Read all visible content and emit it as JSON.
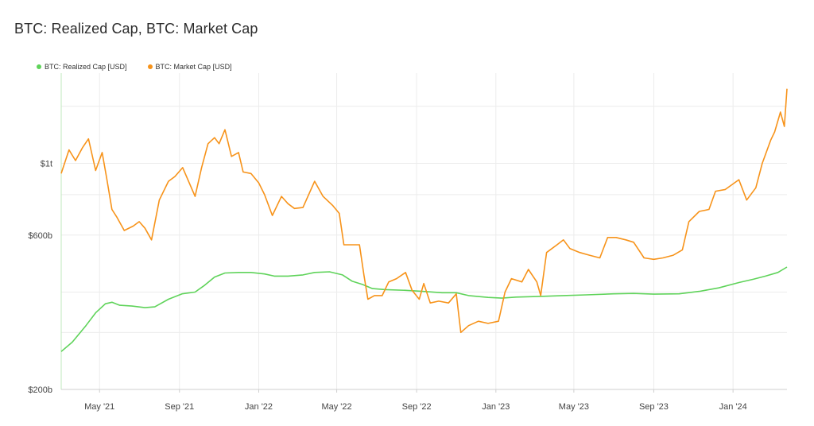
{
  "title": "BTC: Realized Cap, BTC: Market Cap",
  "colors": {
    "realized": "#5fd35a",
    "market": "#f7931a",
    "grid": "#ececec",
    "axis": "#cfcfcf"
  },
  "chart_data": {
    "type": "line",
    "title": "BTC: Realized Cap, BTC: Market Cap",
    "xlabel": "",
    "ylabel": "",
    "x_range": [
      "2021-03-03",
      "2024-03-24"
    ],
    "y_scale": "log",
    "ylim": [
      200,
      1900
    ],
    "y_unit": "billion USD",
    "yticks": [
      {
        "value": 1000,
        "label": "$1t"
      },
      {
        "value": 600,
        "label": "$600b"
      },
      {
        "value": 200,
        "label": "$200b"
      }
    ],
    "xticks": [
      {
        "date": "2021-05-01",
        "label": "May '21"
      },
      {
        "date": "2021-09-01",
        "label": "Sep '21"
      },
      {
        "date": "2022-01-01",
        "label": "Jan '22"
      },
      {
        "date": "2022-05-01",
        "label": "May '22"
      },
      {
        "date": "2022-09-01",
        "label": "Sep '22"
      },
      {
        "date": "2023-01-01",
        "label": "Jan '23"
      },
      {
        "date": "2023-05-01",
        "label": "May '23"
      },
      {
        "date": "2023-09-01",
        "label": "Sep '23"
      },
      {
        "date": "2024-01-01",
        "label": "Jan '24"
      }
    ],
    "grid": true,
    "legend_position": "top-left",
    "series": [
      {
        "name": "BTC: Realized Cap [USD]",
        "color": "#5fd35a",
        "points": [
          [
            "2021-03-03",
            262
          ],
          [
            "2021-03-20",
            280
          ],
          [
            "2021-04-10",
            315
          ],
          [
            "2021-04-25",
            345
          ],
          [
            "2021-05-10",
            368
          ],
          [
            "2021-05-20",
            372
          ],
          [
            "2021-06-01",
            364
          ],
          [
            "2021-06-20",
            362
          ],
          [
            "2021-07-10",
            358
          ],
          [
            "2021-07-25",
            360
          ],
          [
            "2021-08-15",
            380
          ],
          [
            "2021-09-05",
            395
          ],
          [
            "2021-09-25",
            400
          ],
          [
            "2021-10-10",
            420
          ],
          [
            "2021-10-25",
            445
          ],
          [
            "2021-11-10",
            458
          ],
          [
            "2021-12-01",
            460
          ],
          [
            "2021-12-20",
            460
          ],
          [
            "2022-01-10",
            455
          ],
          [
            "2022-01-25",
            448
          ],
          [
            "2022-02-15",
            448
          ],
          [
            "2022-03-10",
            452
          ],
          [
            "2022-03-28",
            460
          ],
          [
            "2022-04-20",
            462
          ],
          [
            "2022-05-10",
            452
          ],
          [
            "2022-05-25",
            432
          ],
          [
            "2022-06-10",
            422
          ],
          [
            "2022-06-25",
            410
          ],
          [
            "2022-07-15",
            407
          ],
          [
            "2022-08-15",
            405
          ],
          [
            "2022-09-10",
            402
          ],
          [
            "2022-10-10",
            398
          ],
          [
            "2022-11-01",
            398
          ],
          [
            "2022-11-20",
            390
          ],
          [
            "2022-12-20",
            385
          ],
          [
            "2023-01-10",
            383
          ],
          [
            "2023-02-01",
            386
          ],
          [
            "2023-03-15",
            388
          ],
          [
            "2023-04-15",
            390
          ],
          [
            "2023-05-20",
            392
          ],
          [
            "2023-07-01",
            395
          ],
          [
            "2023-08-01",
            396
          ],
          [
            "2023-09-01",
            394
          ],
          [
            "2023-10-10",
            395
          ],
          [
            "2023-11-10",
            402
          ],
          [
            "2023-12-10",
            412
          ],
          [
            "2024-01-10",
            428
          ],
          [
            "2024-02-01",
            438
          ],
          [
            "2024-02-20",
            448
          ],
          [
            "2024-03-10",
            460
          ],
          [
            "2024-03-24",
            478
          ]
        ]
      },
      {
        "name": "BTC: Market Cap [USD]",
        "color": "#f7931a",
        "points": [
          [
            "2021-03-03",
            930
          ],
          [
            "2021-03-15",
            1100
          ],
          [
            "2021-03-25",
            1020
          ],
          [
            "2021-04-05",
            1120
          ],
          [
            "2021-04-14",
            1190
          ],
          [
            "2021-04-25",
            950
          ],
          [
            "2021-05-05",
            1080
          ],
          [
            "2021-05-12",
            900
          ],
          [
            "2021-05-20",
            720
          ],
          [
            "2021-05-28",
            680
          ],
          [
            "2021-06-08",
            620
          ],
          [
            "2021-06-22",
            640
          ],
          [
            "2021-07-01",
            660
          ],
          [
            "2021-07-10",
            630
          ],
          [
            "2021-07-20",
            580
          ],
          [
            "2021-08-01",
            770
          ],
          [
            "2021-08-15",
            880
          ],
          [
            "2021-08-25",
            910
          ],
          [
            "2021-09-06",
            970
          ],
          [
            "2021-09-15",
            880
          ],
          [
            "2021-09-25",
            790
          ],
          [
            "2021-10-05",
            970
          ],
          [
            "2021-10-15",
            1150
          ],
          [
            "2021-10-25",
            1200
          ],
          [
            "2021-11-01",
            1150
          ],
          [
            "2021-11-10",
            1270
          ],
          [
            "2021-11-20",
            1050
          ],
          [
            "2021-12-01",
            1080
          ],
          [
            "2021-12-08",
            940
          ],
          [
            "2021-12-20",
            930
          ],
          [
            "2022-01-01",
            870
          ],
          [
            "2022-01-10",
            800
          ],
          [
            "2022-01-22",
            690
          ],
          [
            "2022-02-05",
            790
          ],
          [
            "2022-02-15",
            750
          ],
          [
            "2022-02-25",
            725
          ],
          [
            "2022-03-10",
            730
          ],
          [
            "2022-03-28",
            880
          ],
          [
            "2022-04-10",
            790
          ],
          [
            "2022-04-25",
            740
          ],
          [
            "2022-05-05",
            700
          ],
          [
            "2022-05-12",
            560
          ],
          [
            "2022-05-25",
            560
          ],
          [
            "2022-06-05",
            560
          ],
          [
            "2022-06-12",
            450
          ],
          [
            "2022-06-18",
            380
          ],
          [
            "2022-06-28",
            390
          ],
          [
            "2022-07-10",
            390
          ],
          [
            "2022-07-20",
            430
          ],
          [
            "2022-08-01",
            440
          ],
          [
            "2022-08-15",
            460
          ],
          [
            "2022-08-25",
            405
          ],
          [
            "2022-09-05",
            380
          ],
          [
            "2022-09-12",
            425
          ],
          [
            "2022-09-22",
            370
          ],
          [
            "2022-10-05",
            375
          ],
          [
            "2022-10-20",
            370
          ],
          [
            "2022-11-01",
            395
          ],
          [
            "2022-11-08",
            300
          ],
          [
            "2022-11-20",
            315
          ],
          [
            "2022-12-05",
            325
          ],
          [
            "2022-12-20",
            320
          ],
          [
            "2023-01-05",
            325
          ],
          [
            "2023-01-15",
            400
          ],
          [
            "2023-01-25",
            440
          ],
          [
            "2023-02-10",
            430
          ],
          [
            "2023-02-20",
            470
          ],
          [
            "2023-03-05",
            430
          ],
          [
            "2023-03-11",
            390
          ],
          [
            "2023-03-20",
            530
          ],
          [
            "2023-04-05",
            560
          ],
          [
            "2023-04-15",
            580
          ],
          [
            "2023-04-25",
            545
          ],
          [
            "2023-05-10",
            530
          ],
          [
            "2023-05-25",
            520
          ],
          [
            "2023-06-10",
            510
          ],
          [
            "2023-06-22",
            590
          ],
          [
            "2023-07-05",
            590
          ],
          [
            "2023-07-20",
            580
          ],
          [
            "2023-08-01",
            570
          ],
          [
            "2023-08-17",
            510
          ],
          [
            "2023-09-01",
            505
          ],
          [
            "2023-09-15",
            510
          ],
          [
            "2023-10-01",
            520
          ],
          [
            "2023-10-15",
            540
          ],
          [
            "2023-10-25",
            660
          ],
          [
            "2023-11-10",
            710
          ],
          [
            "2023-11-25",
            720
          ],
          [
            "2023-12-05",
            820
          ],
          [
            "2023-12-20",
            830
          ],
          [
            "2024-01-10",
            890
          ],
          [
            "2024-01-22",
            770
          ],
          [
            "2024-02-05",
            840
          ],
          [
            "2024-02-15",
            1000
          ],
          [
            "2024-02-28",
            1180
          ],
          [
            "2024-03-05",
            1250
          ],
          [
            "2024-03-14",
            1440
          ],
          [
            "2024-03-20",
            1300
          ],
          [
            "2024-03-24",
            1700
          ]
        ]
      }
    ]
  }
}
